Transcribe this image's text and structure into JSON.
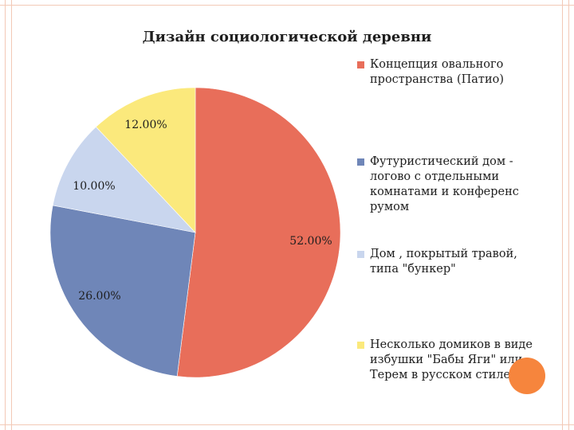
{
  "chart_data": {
    "type": "pie",
    "title": "Дизайн социологической деревни",
    "categories": [
      "Концепция овального пространства (Патио)",
      "Футуристический дом - логово с отдельными комнатами и конференс румом",
      "Дом , покрытый травой, типа \"бункер\"",
      "Несколько домиков в виде избушки \"Бабы Яги\" или Терем в русском стиле"
    ],
    "values": [
      52,
      26,
      10,
      12
    ],
    "value_labels": [
      "52.00%",
      "26.00%",
      "10.00%",
      "12.00%"
    ],
    "colors": [
      "#e86e5a",
      "#6f86b8",
      "#c9d6ee",
      "#fbe97c"
    ],
    "legend_position": "right",
    "legend": [
      {
        "line1": "Концепция овального",
        "line2": "пространства (Патио)",
        "line3": "",
        "line4": ""
      },
      {
        "line1": "Футуристический дом -",
        "line2": "логово с отдельными",
        "line3": "комнатами и конференс",
        "line4": "румом"
      },
      {
        "line1": "Дом , покрытый травой,",
        "line2": "типа \"бункер\"",
        "line3": "",
        "line4": ""
      },
      {
        "line1": "Несколько домиков в виде",
        "line2": "избушки \"Бабы Яги\" или",
        "line3": "Терем в русском стиле",
        "line4": ""
      }
    ]
  }
}
